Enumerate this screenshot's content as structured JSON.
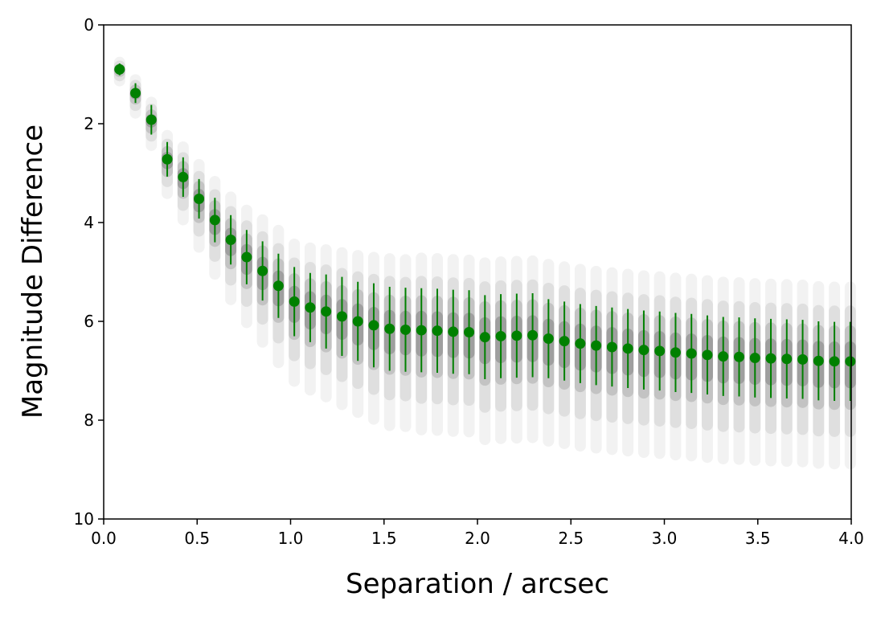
{
  "chart_data": {
    "type": "scatter",
    "title": "",
    "xlabel": "Separation / arcsec",
    "ylabel": "Magnitude Difference",
    "xlim": [
      0.0,
      4.0
    ],
    "ylim": [
      0,
      10
    ],
    "y_inverted": true,
    "grid": false,
    "legend": "none",
    "x_ticks": [
      "0.0",
      "0.5",
      "1.0",
      "1.5",
      "2.0",
      "2.5",
      "3.0",
      "3.5",
      "4.0"
    ],
    "y_ticks": [
      "0",
      "2",
      "4",
      "6",
      "8",
      "10"
    ],
    "series": [
      {
        "kind": "errorbar",
        "color": "#008000",
        "x": [
          0.085,
          0.17,
          0.255,
          0.34,
          0.425,
          0.51,
          0.595,
          0.68,
          0.765,
          0.85,
          0.935,
          1.02,
          1.105,
          1.19,
          1.275,
          1.36,
          1.445,
          1.53,
          1.615,
          1.7,
          1.785,
          1.87,
          1.955,
          2.04,
          2.125,
          2.21,
          2.295,
          2.38,
          2.465,
          2.55,
          2.635,
          2.72,
          2.805,
          2.89,
          2.975,
          3.06,
          3.145,
          3.23,
          3.315,
          3.4,
          3.485,
          3.57,
          3.655,
          3.74,
          3.825,
          3.91,
          3.995
        ],
        "y": [
          0.9,
          1.38,
          1.92,
          2.72,
          3.08,
          3.52,
          3.95,
          4.35,
          4.7,
          4.98,
          5.28,
          5.6,
          5.72,
          5.8,
          5.9,
          6.0,
          6.08,
          6.15,
          6.17,
          6.18,
          6.19,
          6.21,
          6.22,
          6.32,
          6.3,
          6.29,
          6.28,
          6.35,
          6.4,
          6.45,
          6.49,
          6.52,
          6.55,
          6.58,
          6.6,
          6.63,
          6.65,
          6.68,
          6.71,
          6.72,
          6.74,
          6.75,
          6.76,
          6.77,
          6.8,
          6.81,
          6.81
        ],
        "err": [
          0.12,
          0.2,
          0.3,
          0.35,
          0.4,
          0.4,
          0.45,
          0.5,
          0.55,
          0.6,
          0.65,
          0.7,
          0.7,
          0.75,
          0.8,
          0.8,
          0.85,
          0.85,
          0.85,
          0.85,
          0.85,
          0.85,
          0.85,
          0.85,
          0.85,
          0.85,
          0.85,
          0.8,
          0.8,
          0.8,
          0.8,
          0.8,
          0.8,
          0.8,
          0.8,
          0.8,
          0.8,
          0.8,
          0.8,
          0.8,
          0.8,
          0.8,
          0.8,
          0.8,
          0.8,
          0.8,
          0.8
        ]
      },
      {
        "kind": "distribution-cloud",
        "color": "#000000",
        "x": [
          0.085,
          0.17,
          0.255,
          0.34,
          0.425,
          0.51,
          0.595,
          0.68,
          0.765,
          0.85,
          0.935,
          1.02,
          1.105,
          1.19,
          1.275,
          1.36,
          1.445,
          1.53,
          1.615,
          1.7,
          1.785,
          1.87,
          1.955,
          2.04,
          2.125,
          2.21,
          2.295,
          2.38,
          2.465,
          2.55,
          2.635,
          2.72,
          2.805,
          2.89,
          2.975,
          3.06,
          3.145,
          3.23,
          3.315,
          3.4,
          3.485,
          3.57,
          3.655,
          3.74,
          3.825,
          3.91,
          3.995
        ],
        "y_center": [
          0.9,
          1.38,
          1.92,
          2.72,
          3.08,
          3.52,
          3.95,
          4.35,
          4.7,
          4.98,
          5.28,
          5.6,
          5.72,
          5.8,
          5.9,
          6.0,
          6.08,
          6.15,
          6.17,
          6.18,
          6.19,
          6.21,
          6.22,
          6.32,
          6.3,
          6.29,
          6.28,
          6.35,
          6.4,
          6.45,
          6.49,
          6.52,
          6.55,
          6.58,
          6.6,
          6.63,
          6.65,
          6.68,
          6.71,
          6.72,
          6.74,
          6.75,
          6.76,
          6.77,
          6.8,
          6.81,
          6.81
        ],
        "y_spread": [
          0.3,
          0.45,
          0.55,
          0.7,
          0.85,
          0.95,
          1.05,
          1.15,
          1.25,
          1.35,
          1.45,
          1.5,
          1.55,
          1.6,
          1.65,
          1.7,
          1.75,
          1.8,
          1.8,
          1.85,
          1.85,
          1.85,
          1.85,
          1.9,
          1.9,
          1.9,
          1.9,
          1.9,
          1.9,
          1.9,
          1.9,
          1.9,
          1.9,
          1.9,
          1.9,
          1.9,
          1.9,
          1.9,
          1.9,
          1.9,
          1.9,
          1.9,
          1.9,
          1.9,
          1.9,
          1.9,
          1.9
        ]
      }
    ]
  }
}
